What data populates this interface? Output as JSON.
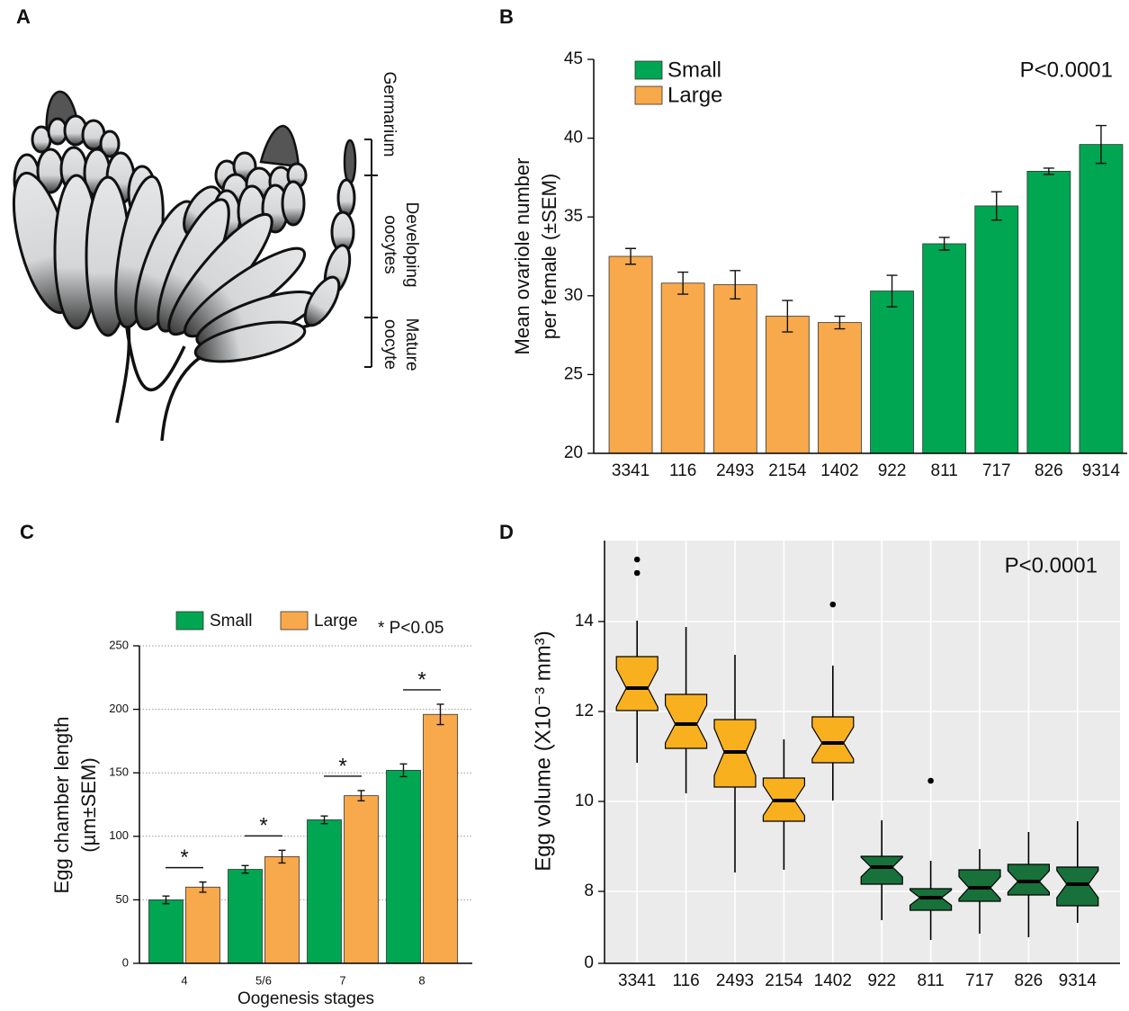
{
  "diagram": {
    "panel_label": "A",
    "labels": {
      "germarium": "Germarium",
      "developing": [
        "Developing",
        "oocytes"
      ],
      "mature": [
        "Mature",
        "oocyte"
      ]
    }
  },
  "chart_data": [
    {
      "type": "bar",
      "panel_label": "B",
      "y_label": [
        "Mean ovariole number",
        "per female (±SEM)"
      ],
      "annotation": "P<0.0001",
      "categories": [
        "3341",
        "116",
        "2493",
        "2154",
        "1402",
        "922",
        "811",
        "717",
        "826",
        "9314"
      ],
      "series": [
        {
          "name": "Small",
          "color": "#00a651",
          "values": [
            null,
            null,
            null,
            null,
            null,
            30.3,
            33.3,
            35.7,
            37.9,
            39.6
          ],
          "errors": [
            null,
            null,
            null,
            null,
            null,
            1.0,
            0.4,
            0.9,
            0.2,
            1.2
          ]
        },
        {
          "name": "Large",
          "color": "#f8a94b",
          "values": [
            32.5,
            30.8,
            30.7,
            28.7,
            28.3,
            null,
            null,
            null,
            null,
            null
          ],
          "errors": [
            0.5,
            0.7,
            0.9,
            1.0,
            0.4,
            null,
            null,
            null,
            null,
            null
          ]
        }
      ],
      "ylim": [
        20,
        45
      ],
      "yticks": [
        20,
        25,
        30,
        35,
        40,
        45
      ],
      "legend": "upper left"
    },
    {
      "type": "grouped_bar",
      "panel_label": "C",
      "x_label": "Oogenesis stages",
      "y_label": [
        "Egg chamber length",
        "(µm±SEM)"
      ],
      "categories": [
        "4",
        "5/6",
        "7",
        "8"
      ],
      "series": [
        {
          "name": "Small",
          "color": "#00a651",
          "values": [
            50,
            74,
            113,
            152
          ],
          "errors": [
            3,
            3,
            3,
            5
          ]
        },
        {
          "name": "Large",
          "color": "#f8a94b",
          "values": [
            60,
            84,
            132,
            196
          ],
          "errors": [
            4,
            5,
            4,
            8
          ]
        }
      ],
      "significance": [
        "*",
        "*",
        "*",
        "*"
      ],
      "significance_note": "* P<0.05",
      "ylim": [
        0,
        250
      ],
      "yticks": [
        0,
        50,
        100,
        150,
        200,
        250
      ],
      "grid": true,
      "legend": "top"
    },
    {
      "type": "box",
      "panel_label": "D",
      "y_label": "Egg volume (X10⁻³ mm³)",
      "annotation": "P<0.0001",
      "categories": [
        "3341",
        "116",
        "2493",
        "2154",
        "1402",
        "922",
        "811",
        "717",
        "826",
        "9314"
      ],
      "colors": [
        "#f9b01f",
        "#f9b01f",
        "#f9b01f",
        "#f9b01f",
        "#f9b01f",
        "#18713a",
        "#18713a",
        "#18713a",
        "#18713a",
        "#18713a"
      ],
      "boxes": [
        {
          "whislo": 10.86,
          "q1": 12.02,
          "med": 12.52,
          "q3": 13.22,
          "whishi": 14.02,
          "fliers": [
            15.38,
            15.08
          ]
        },
        {
          "whislo": 10.18,
          "q1": 11.18,
          "med": 11.72,
          "q3": 12.38,
          "whishi": 13.88,
          "fliers": []
        },
        {
          "whislo": 8.42,
          "q1": 10.32,
          "med": 11.1,
          "q3": 11.82,
          "whishi": 13.26,
          "fliers": []
        },
        {
          "whislo": 8.48,
          "q1": 9.56,
          "med": 10.02,
          "q3": 10.52,
          "whishi": 11.38,
          "fliers": []
        },
        {
          "whislo": 10.02,
          "q1": 10.86,
          "med": 11.3,
          "q3": 11.88,
          "whishi": 13.02,
          "fliers": [
            14.38
          ]
        },
        {
          "whislo": 7.36,
          "q1": 8.16,
          "med": 8.54,
          "q3": 8.78,
          "whishi": 9.58,
          "fliers": []
        },
        {
          "whislo": 6.92,
          "q1": 7.58,
          "med": 7.86,
          "q3": 8.06,
          "whishi": 8.68,
          "fliers": [
            10.46
          ]
        },
        {
          "whislo": 7.06,
          "q1": 7.78,
          "med": 8.08,
          "q3": 8.48,
          "whishi": 8.94,
          "fliers": []
        },
        {
          "whislo": 6.98,
          "q1": 7.92,
          "med": 8.22,
          "q3": 8.6,
          "whishi": 9.32,
          "fliers": []
        },
        {
          "whislo": 7.3,
          "q1": 7.68,
          "med": 8.16,
          "q3": 8.54,
          "whishi": 9.56,
          "fliers": []
        }
      ],
      "ylim": [
        6.4,
        15.8
      ],
      "yticks": [
        0,
        8,
        10,
        12,
        14
      ],
      "axis_break": true,
      "grid": true
    }
  ]
}
